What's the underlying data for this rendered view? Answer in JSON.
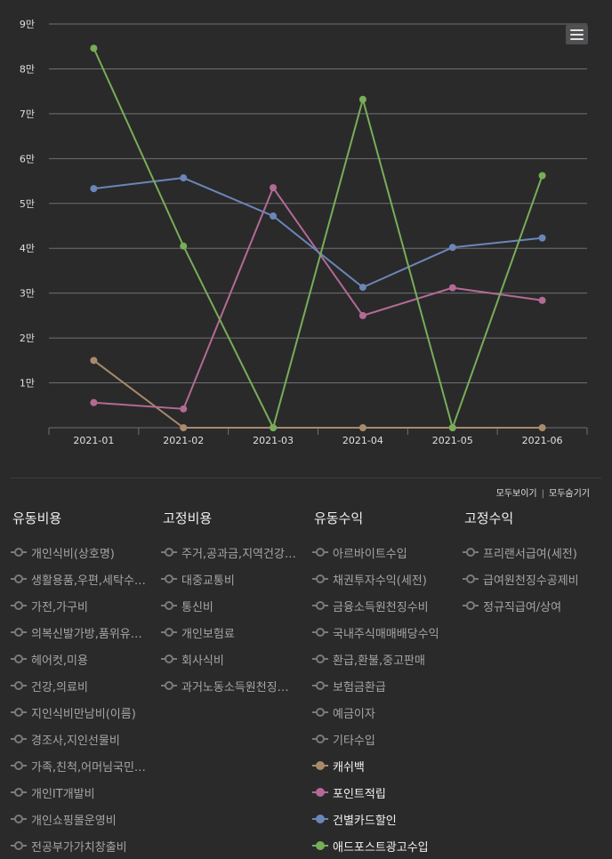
{
  "chart_data": {
    "type": "line",
    "categories": [
      "2021-01",
      "2021-02",
      "2021-03",
      "2021-04",
      "2021-05",
      "2021-06"
    ],
    "y_ticks": [
      "9만",
      "8만",
      "7만",
      "6만",
      "5만",
      "4만",
      "3만",
      "2만",
      "1만"
    ],
    "ylim": [
      0,
      90000
    ],
    "grid": true,
    "series": [
      {
        "name": "캐쉬백",
        "color": "#a98b6b",
        "values": [
          15000,
          0,
          0,
          0,
          0,
          0
        ]
      },
      {
        "name": "포인트적립",
        "color": "#b36a95",
        "values": [
          5600,
          4200,
          53500,
          25000,
          31200,
          28400
        ]
      },
      {
        "name": "건별카드할인",
        "color": "#6b86b8",
        "values": [
          53300,
          55700,
          47200,
          31300,
          40200,
          42300
        ]
      },
      {
        "name": "애드포스트광고수입",
        "color": "#79ad58",
        "values": [
          84600,
          40500,
          0,
          73200,
          0,
          56200
        ]
      }
    ]
  },
  "menu_icon": "hamburger-icon",
  "controls": {
    "show_all": "모두보이기",
    "separator": "|",
    "hide_all": "모두숨기기"
  },
  "legend_groups": [
    {
      "title": "유동비용",
      "items": [
        {
          "label": "개인식비(상호명)",
          "active": false
        },
        {
          "label": "생활용품,우편,세탁수…",
          "active": false
        },
        {
          "label": "가전,가구비",
          "active": false
        },
        {
          "label": "의복신발가방,품위유…",
          "active": false
        },
        {
          "label": "헤어컷,미용",
          "active": false
        },
        {
          "label": "건강,의료비",
          "active": false
        },
        {
          "label": "지인식비만남비(이름)",
          "active": false
        },
        {
          "label": "경조사,지인선물비",
          "active": false
        },
        {
          "label": "가족,친척,어머님국민…",
          "active": false
        },
        {
          "label": "개인IT개발비",
          "active": false
        },
        {
          "label": "개인쇼핑몰운영비",
          "active": false
        },
        {
          "label": "전공부가가치창출비",
          "active": false
        }
      ]
    },
    {
      "title": "고정비용",
      "items": [
        {
          "label": "주거,공과금,지역건강…",
          "active": false
        },
        {
          "label": "대중교통비",
          "active": false
        },
        {
          "label": "통신비",
          "active": false
        },
        {
          "label": "개인보험료",
          "active": false
        },
        {
          "label": "회사식비",
          "active": false
        },
        {
          "label": "과거노동소득원천징…",
          "active": false
        }
      ]
    },
    {
      "title": "유동수익",
      "items": [
        {
          "label": "아르바이트수입",
          "active": false
        },
        {
          "label": "채권투자수익(세전)",
          "active": false
        },
        {
          "label": "금융소득원천징수비",
          "active": false
        },
        {
          "label": "국내주식매매배당수익",
          "active": false
        },
        {
          "label": "환급,환불,중고판매",
          "active": false
        },
        {
          "label": "보험금환급",
          "active": false
        },
        {
          "label": "예금이자",
          "active": false
        },
        {
          "label": "기타수입",
          "active": false
        },
        {
          "label": "캐쉬백",
          "active": true,
          "color": "#a98b6b"
        },
        {
          "label": "포인트적립",
          "active": true,
          "color": "#b36a95"
        },
        {
          "label": "건별카드할인",
          "active": true,
          "color": "#6b86b8"
        },
        {
          "label": "애드포스트광고수입",
          "active": true,
          "color": "#79ad58"
        }
      ]
    },
    {
      "title": "고정수익",
      "items": [
        {
          "label": "프리랜서급여(세전)",
          "active": false
        },
        {
          "label": "급여원천징수공제비",
          "active": false
        },
        {
          "label": "정규직급여/상여",
          "active": false
        }
      ]
    }
  ]
}
